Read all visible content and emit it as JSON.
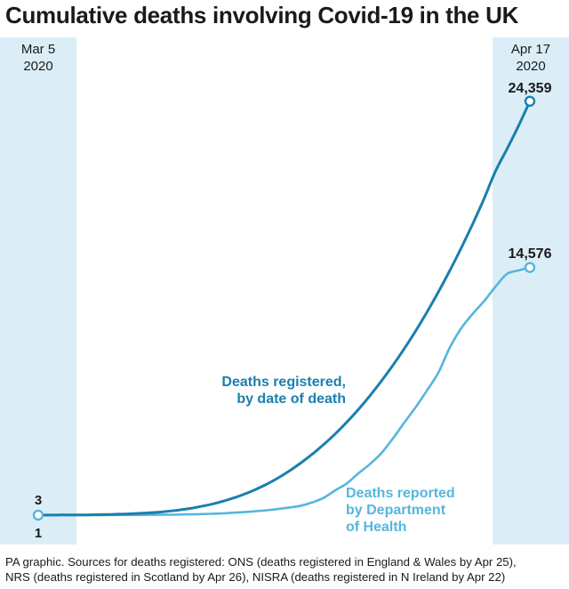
{
  "title": "Cumulative deaths involving Covid-19 in the UK",
  "source": {
    "line1": "PA graphic. Sources for deaths registered: ONS (deaths registered in England & Wales by Apr 25),",
    "line2": "NRS (deaths registered in Scotland by Apr 26), NISRA (deaths registered in N Ireland by Apr 22)"
  },
  "colors": {
    "registered": "#1a7fae",
    "reported": "#55b6de",
    "band": "#dbeef8",
    "text": "#1a1a1a"
  },
  "chart_data": {
    "type": "line",
    "title": "Cumulative deaths involving Covid-19 in the UK",
    "x_start_label": [
      "Mar 5",
      "2020"
    ],
    "x_end_label": [
      "Apr 17",
      "2020"
    ],
    "days": 43,
    "ylim": [
      0,
      25500
    ],
    "series": [
      {
        "name": "Deaths registered, by date of death",
        "label_lines": [
          "Deaths registered,",
          "by date of death"
        ],
        "color": "#1a7fae",
        "start_label": "3",
        "end_label": "24,359",
        "values": [
          3,
          5,
          8,
          12,
          18,
          26,
          38,
          55,
          78,
          110,
          150,
          205,
          275,
          365,
          480,
          620,
          790,
          990,
          1230,
          1510,
          1830,
          2200,
          2620,
          3090,
          3610,
          4180,
          4800,
          5480,
          6220,
          7020,
          7880,
          8800,
          9780,
          10830,
          11950,
          13140,
          14400,
          15730,
          17140,
          18640,
          20250,
          21550,
          22900,
          24359
        ]
      },
      {
        "name": "Deaths reported by Department of Health",
        "label_lines": [
          "Deaths reported",
          "by Department",
          "of Health"
        ],
        "color": "#55b6de",
        "start_label": "1",
        "end_label": "14,576",
        "values": [
          1,
          2,
          2,
          3,
          4,
          6,
          8,
          10,
          13,
          16,
          20,
          25,
          32,
          45,
          60,
          80,
          100,
          140,
          180,
          230,
          290,
          360,
          450,
          560,
          760,
          1030,
          1470,
          1870,
          2460,
          3000,
          3640,
          4500,
          5430,
          6340,
          7340,
          8390,
          9870,
          11000,
          11850,
          12600,
          13450,
          14200,
          14400,
          14576
        ]
      }
    ]
  }
}
